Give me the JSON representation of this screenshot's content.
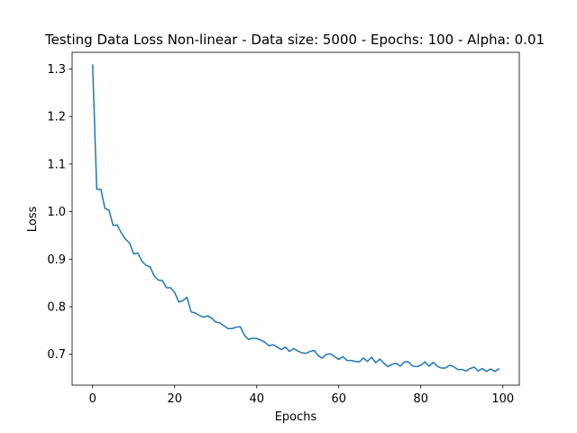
{
  "chart_data": {
    "type": "line",
    "title": "Testing Data Loss Non-linear - Data size: 5000 - Epochs: 100 - Alpha: 0.01",
    "xlabel": "Epochs",
    "ylabel": "Loss",
    "xlim": [
      -5,
      104
    ],
    "ylim": [
      0.635,
      1.335
    ],
    "xticks": [
      0,
      20,
      40,
      60,
      80,
      100
    ],
    "yticks": [
      0.7,
      0.8,
      0.9,
      1.0,
      1.1,
      1.2,
      1.3
    ],
    "xtick_labels": [
      "0",
      "20",
      "40",
      "60",
      "80",
      "100"
    ],
    "ytick_labels": [
      "0.7",
      "0.8",
      "0.9",
      "1.0",
      "1.1",
      "1.2",
      "1.3"
    ],
    "grid": false,
    "line_color": "#1f77b4",
    "series": [
      {
        "x": [
          0,
          1,
          2,
          3,
          4,
          5,
          6,
          7,
          8,
          9,
          10,
          11,
          12,
          13,
          14,
          15,
          16,
          17,
          18,
          19,
          20,
          21,
          22,
          23,
          24,
          25,
          26,
          27,
          28,
          29,
          30,
          31,
          32,
          33,
          34,
          35,
          36,
          37,
          38,
          39,
          40,
          41,
          42,
          43,
          44,
          45,
          46,
          47,
          48,
          49,
          50,
          51,
          52,
          53,
          54,
          55,
          56,
          57,
          58,
          59,
          60,
          61,
          62,
          63,
          64,
          65,
          66,
          67,
          68,
          69,
          70,
          71,
          72,
          73,
          74,
          75,
          76,
          77,
          78,
          79,
          80,
          81,
          82,
          83,
          84,
          85,
          86,
          87,
          88,
          89,
          90,
          91,
          92,
          93,
          94,
          95,
          96,
          97,
          98,
          99
        ],
        "values": [
          1.308,
          1.047,
          1.047,
          1.007,
          1.003,
          0.971,
          0.972,
          0.955,
          0.942,
          0.934,
          0.911,
          0.913,
          0.896,
          0.887,
          0.884,
          0.865,
          0.856,
          0.855,
          0.84,
          0.84,
          0.83,
          0.81,
          0.813,
          0.82,
          0.789,
          0.787,
          0.782,
          0.778,
          0.781,
          0.776,
          0.768,
          0.766,
          0.76,
          0.754,
          0.754,
          0.757,
          0.758,
          0.74,
          0.731,
          0.734,
          0.733,
          0.73,
          0.725,
          0.718,
          0.72,
          0.715,
          0.71,
          0.715,
          0.706,
          0.712,
          0.707,
          0.703,
          0.702,
          0.706,
          0.708,
          0.697,
          0.692,
          0.7,
          0.701,
          0.695,
          0.689,
          0.695,
          0.687,
          0.687,
          0.685,
          0.684,
          0.692,
          0.685,
          0.694,
          0.682,
          0.69,
          0.681,
          0.674,
          0.679,
          0.681,
          0.675,
          0.684,
          0.684,
          0.675,
          0.674,
          0.677,
          0.684,
          0.675,
          0.683,
          0.675,
          0.671,
          0.671,
          0.677,
          0.674,
          0.668,
          0.668,
          0.665,
          0.67,
          0.673,
          0.665,
          0.67,
          0.664,
          0.669,
          0.664,
          0.669
        ]
      }
    ]
  }
}
